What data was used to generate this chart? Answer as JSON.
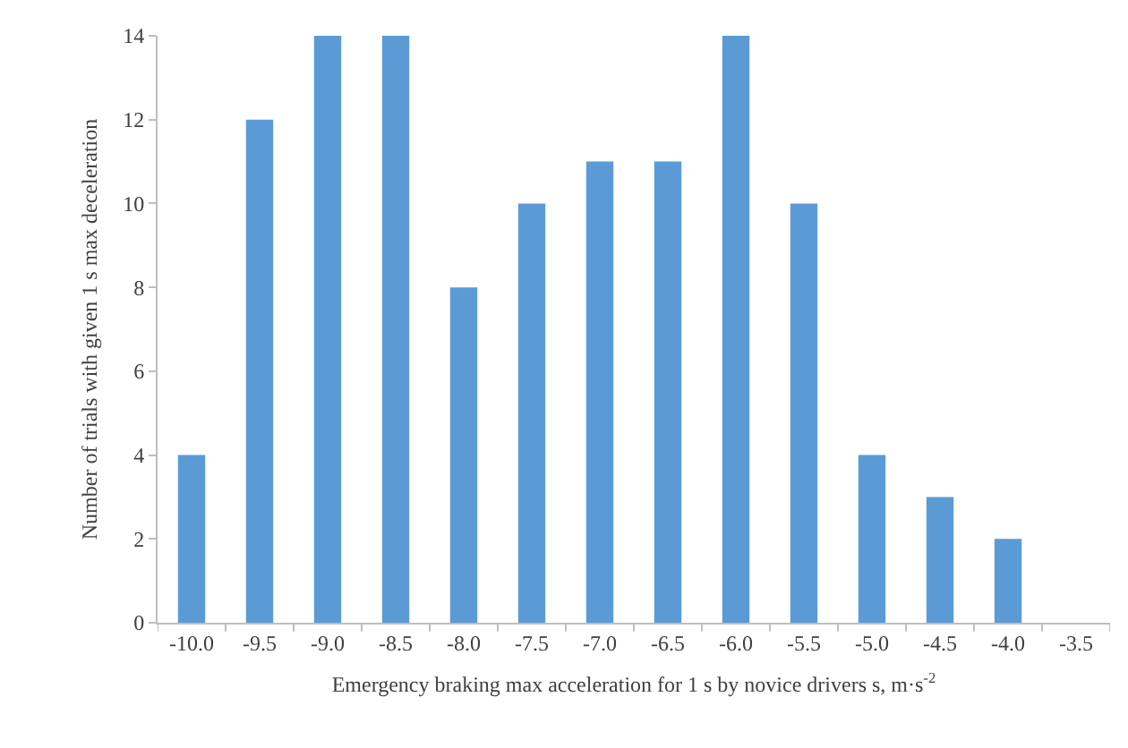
{
  "chart_data": {
    "type": "bar",
    "xlabel": "Emergency braking max acceleration for 1 s by novice drivers s, m·s$^{-2}$",
    "ylabel": "Number of trials with given 1 s max deceleration",
    "categories": [
      "-10.0",
      "-9.5",
      "-9.0",
      "-8.5",
      "-8.0",
      "-7.5",
      "-7.0",
      "-6.5",
      "-6.0",
      "-5.5",
      "-5.0",
      "-4.5",
      "-4.0",
      "-3.5"
    ],
    "values": [
      4,
      12,
      14,
      14,
      8,
      10,
      11,
      11,
      14,
      10,
      4,
      3,
      2,
      0
    ],
    "color": "#5b9bd5",
    "ylim": [
      0,
      14
    ],
    "yticks": [
      0,
      2,
      4,
      6,
      8,
      10,
      12,
      14
    ]
  }
}
